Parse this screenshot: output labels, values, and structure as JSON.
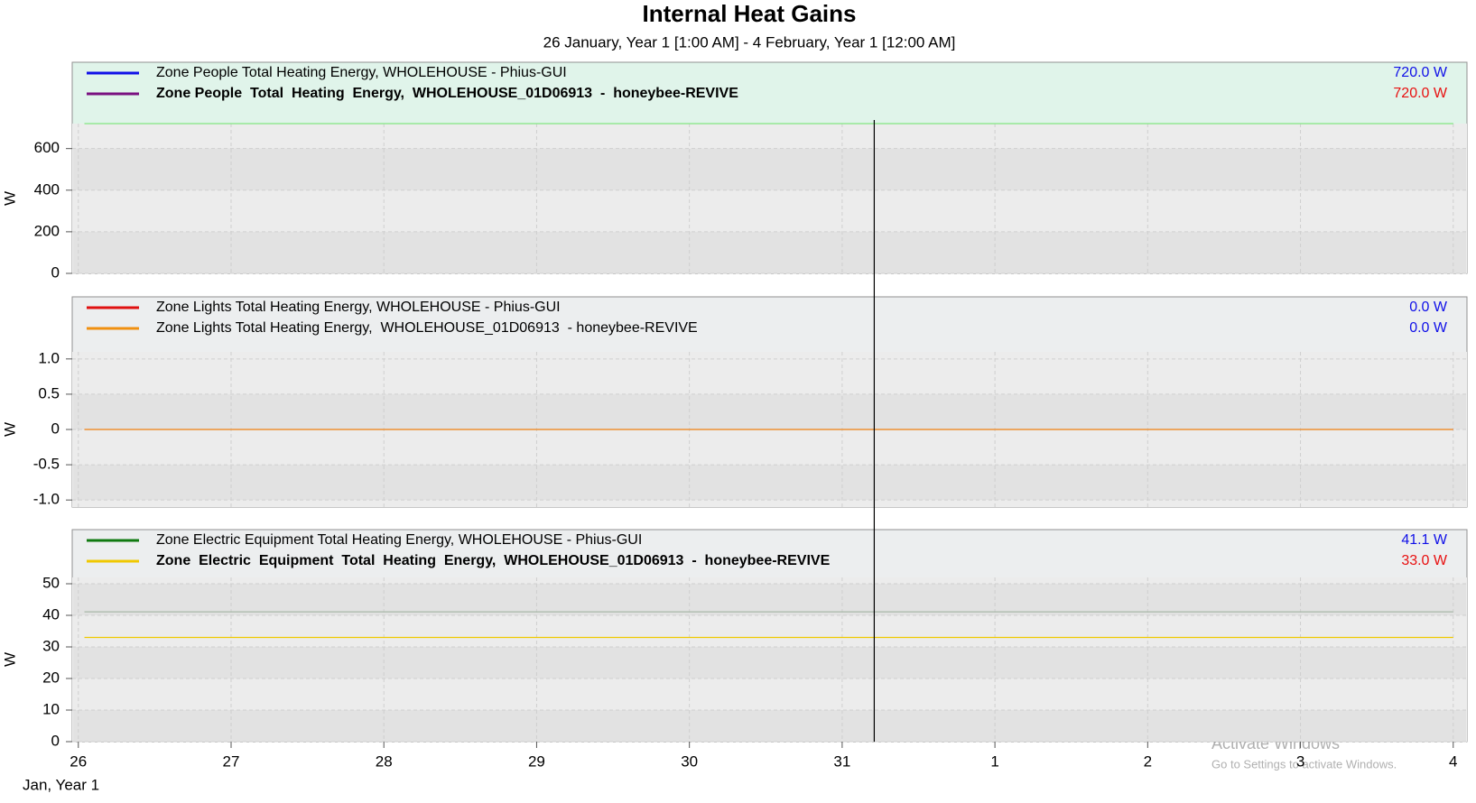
{
  "title": "Internal Heat Gains",
  "subtitle": "26 January, Year 1 [1:00 AM] - 4 February, Year 1 [12:00 AM]",
  "x_axis": {
    "label": "Jan, Year 1",
    "xlim": [
      25.96,
      35.09
    ],
    "xticks": [
      26,
      27,
      28,
      29,
      30,
      31,
      {
        "value": 32,
        "label": "1"
      },
      {
        "value": 33,
        "label": "2"
      },
      {
        "value": 34,
        "label": "3"
      },
      {
        "value": 35,
        "label": "4"
      }
    ],
    "cursor_x": 31.21
  },
  "watermark": {
    "title": "Activate Windows",
    "subtitle": "Go to Settings to activate Windows."
  },
  "chart_data": [
    {
      "type": "line",
      "y_label": "W",
      "selected": true,
      "x": [
        26.04,
        35
      ],
      "ylim": [
        0,
        720
      ],
      "yticks": [
        0,
        200,
        400,
        600
      ],
      "series": [
        {
          "name": "Zone People Total Heating Energy, WHOLEHOUSE - Phius-GUI",
          "color": "#1010e8",
          "line_color": "#90e890",
          "bold": false,
          "values": [
            720,
            720
          ],
          "cursor_value": 720.0,
          "cursor_label": "720.0 W",
          "cursor_color": "#1010e8"
        },
        {
          "name": "Zone People  Total  Heating  Energy,  WHOLEHOUSE_01D06913  -  honeybee-REVIVE",
          "color": "#7a1080",
          "line_color": "#90e890",
          "bold": true,
          "values": [
            720,
            720
          ],
          "cursor_value": 720.0,
          "cursor_label": "720.0 W",
          "cursor_color": "#e81010"
        }
      ]
    },
    {
      "type": "line",
      "y_label": "W",
      "selected": false,
      "x": [
        26.04,
        35
      ],
      "ylim": [
        -1.1,
        1.1
      ],
      "yticks": [
        {
          "value": -1,
          "label": "-1.0"
        },
        -0.5,
        0,
        0.5,
        {
          "value": 1,
          "label": "1.0"
        }
      ],
      "series": [
        {
          "name": "Zone Lights Total Heating Energy, WHOLEHOUSE - Phius-GUI",
          "color": "#e01010",
          "line_color": "#e01010",
          "bold": false,
          "values": [
            0,
            0
          ],
          "cursor_value": 0.0,
          "cursor_label": "0.0 W",
          "cursor_color": "#1010e8"
        },
        {
          "name": "Zone Lights Total Heating Energy,  WHOLEHOUSE_01D06913  - honeybee-REVIVE",
          "color": "#f09010",
          "line_color": "#f0a030",
          "bold": false,
          "values": [
            0,
            0
          ],
          "cursor_value": 0.0,
          "cursor_label": "0.0 W",
          "cursor_color": "#1010e8"
        }
      ]
    },
    {
      "type": "line",
      "y_label": "W",
      "selected": false,
      "x": [
        26.04,
        35
      ],
      "ylim": [
        0,
        52
      ],
      "yticks": [
        0,
        10,
        20,
        30,
        40,
        50
      ],
      "series": [
        {
          "name": "Zone Electric Equipment Total Heating Energy, WHOLEHOUSE - Phius-GUI",
          "color": "#107a10",
          "line_color": "#a8b8a8",
          "bold": false,
          "values": [
            41.1,
            41.1
          ],
          "cursor_value": 41.1,
          "cursor_label": "41.1 W",
          "cursor_color": "#1010e8"
        },
        {
          "name": "Zone  Electric  Equipment  Total  Heating  Energy,  WHOLEHOUSE_01D06913  -  honeybee-REVIVE",
          "color": "#f0c800",
          "line_color": "#f0c800",
          "bold": true,
          "values": [
            33,
            33
          ],
          "cursor_value": 33.0,
          "cursor_label": "33.0 W",
          "cursor_color": "#e81010"
        }
      ]
    }
  ]
}
